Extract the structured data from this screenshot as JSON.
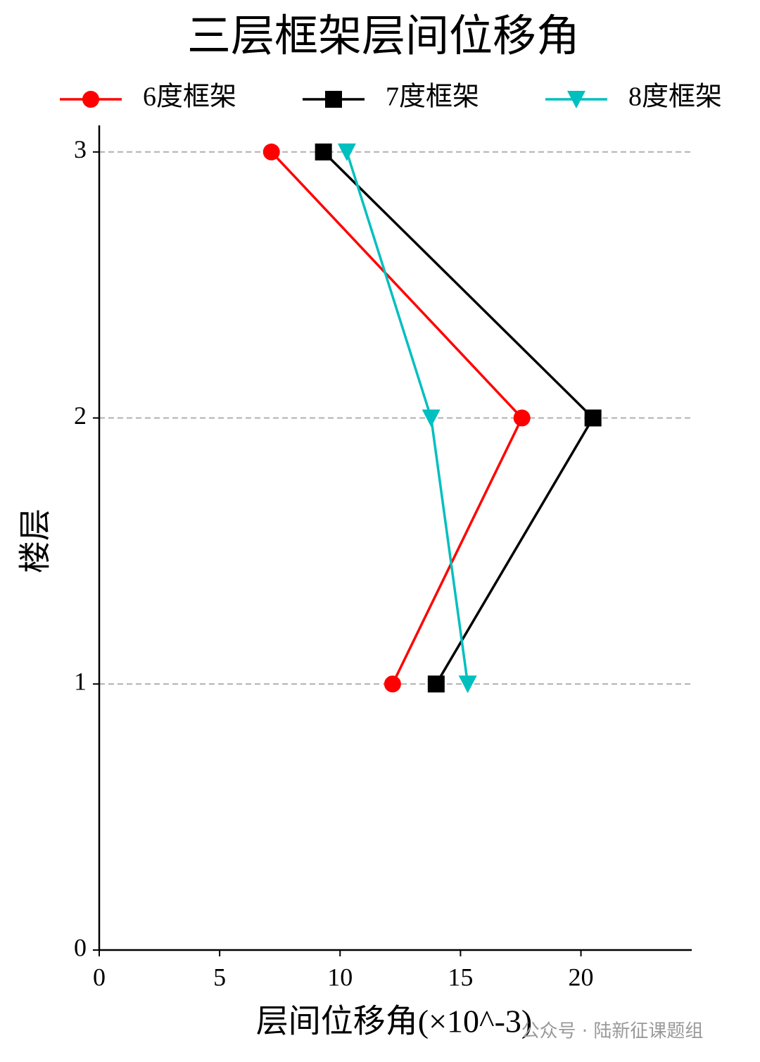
{
  "chart_data": {
    "type": "line",
    "title": "三层框架层间位移角",
    "xlabel": "层间位移角(×10^-3)",
    "ylabel": "楼层",
    "xlim": [
      0,
      24.6
    ],
    "ylim": [
      0,
      3.1
    ],
    "xticks": [
      0,
      5,
      10,
      15,
      20
    ],
    "yticks": [
      0,
      1,
      2,
      3
    ],
    "grid": true,
    "legend": "top",
    "series": [
      {
        "name": "6度框架",
        "color": "#ff0000",
        "marker": "circle",
        "x": [
          7.15,
          17.55,
          12.18
        ],
        "values": [
          3,
          2,
          1
        ]
      },
      {
        "name": "7度框架",
        "color": "#000000",
        "marker": "square",
        "x": [
          9.31,
          20.5,
          13.99
        ],
        "values": [
          3,
          2,
          1
        ]
      },
      {
        "name": "8度框架",
        "color": "#00bfbf",
        "marker": "triangle-down",
        "x": [
          10.28,
          13.78,
          15.3
        ],
        "values": [
          3,
          2,
          1
        ]
      }
    ],
    "watermark": "公众号 · 陆新征课题组"
  }
}
